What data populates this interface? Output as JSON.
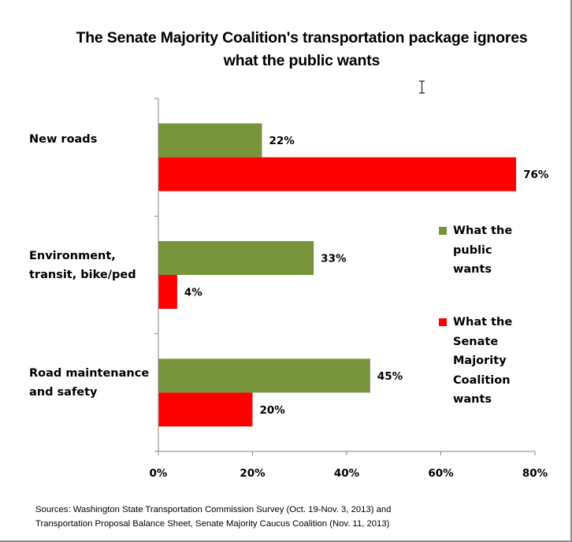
{
  "chart_data": {
    "type": "bar",
    "orientation": "horizontal",
    "title": "The Senate Majority Coalition's transportation package ignores what the public wants",
    "categories": [
      "New roads",
      "Environment, transit, bike/ped",
      "Road maintenance and safety"
    ],
    "series": [
      {
        "name": "What the public wants",
        "color": "#77933c",
        "values": [
          22,
          33,
          45
        ],
        "labels": [
          "22%",
          "33%",
          "45%"
        ]
      },
      {
        "name": "What the Senate Majority Coalition wants",
        "color": "#ff0000",
        "values": [
          76,
          4,
          20
        ],
        "labels": [
          "76%",
          "4%",
          "20%"
        ]
      }
    ],
    "xlabel": "",
    "ylabel": "",
    "xlim": [
      0,
      80
    ],
    "xticks": [
      0,
      20,
      40,
      60,
      80
    ],
    "xtick_labels": [
      "0%",
      "20%",
      "40%",
      "60%",
      "80%"
    ],
    "grid": false,
    "legend_position": "right"
  },
  "title_lines": [
    "The Senate Majority Coalition's transportation package ignores",
    "what the public wants"
  ],
  "category_label_lines": [
    [
      "New roads"
    ],
    [
      "Environment,",
      "transit, bike/ped"
    ],
    [
      "Road maintenance",
      "and safety"
    ]
  ],
  "legend": [
    {
      "lines": [
        "What the",
        "public",
        "wants"
      ],
      "color": "#77933c"
    },
    {
      "lines": [
        "What the",
        "Senate",
        "Majority",
        "Coalition",
        "wants"
      ],
      "color": "#ff0000"
    }
  ],
  "source_lines": [
    "Sources: Washington State Transportation Commission  Survey (Oct. 19-Nov. 3, 2013) and",
    "Transportation Proposal  Balance Sheet, Senate Majority Caucus Coalition (Nov. 11, 2013)"
  ],
  "cursor_icon": "text-cursor-icon"
}
